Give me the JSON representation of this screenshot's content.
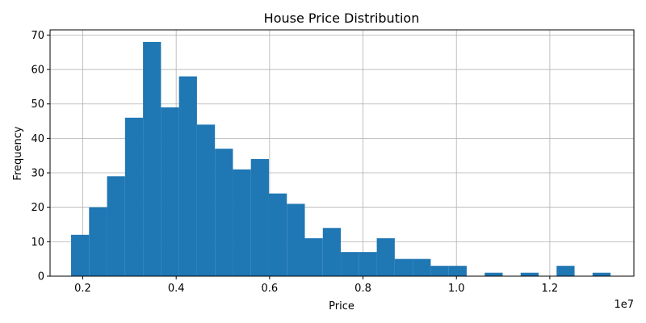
{
  "chart_data": {
    "type": "bar",
    "title": "House Price Distribution",
    "xlabel": "Price",
    "ylabel": "Frequency",
    "x_offset_label": "1e7",
    "x_multiplier": 10000000,
    "bin_start": 1750000,
    "bin_width": 385000,
    "counts": [
      12,
      20,
      29,
      46,
      68,
      49,
      58,
      44,
      37,
      31,
      34,
      24,
      21,
      11,
      14,
      7,
      7,
      11,
      5,
      5,
      3,
      3,
      0,
      1,
      0,
      1,
      0,
      3,
      0,
      1
    ],
    "xlim": [
      0.13,
      1.38
    ],
    "ylim": [
      0,
      71.5
    ],
    "xticks": [
      0.2,
      0.4,
      0.6,
      0.8,
      1.0,
      1.2
    ],
    "xtick_labels": [
      "0.2",
      "0.4",
      "0.6",
      "0.8",
      "1.0",
      "1.2"
    ],
    "yticks": [
      0,
      10,
      20,
      30,
      40,
      50,
      60,
      70
    ],
    "ytick_labels": [
      "0",
      "10",
      "20",
      "30",
      "40",
      "50",
      "60",
      "70"
    ],
    "grid": true,
    "bar_color": "#1f77b4",
    "grid_color": "#b0b0b0"
  }
}
